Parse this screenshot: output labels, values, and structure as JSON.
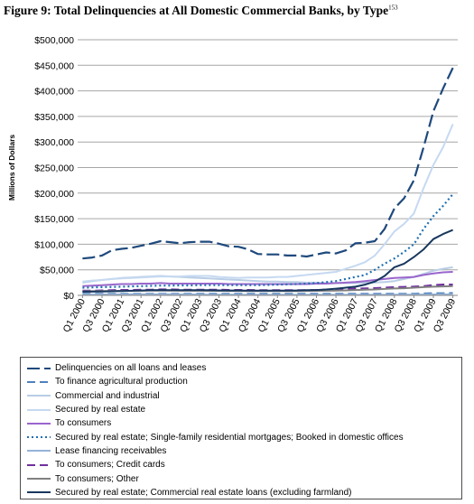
{
  "figure": {
    "title": "Figure 9: Total Delinquencies at All Domestic Commercial Banks, by Type",
    "footnote_marker": "153"
  },
  "chart_data": {
    "type": "line",
    "ylabel": "Millions of Dollars",
    "xlabel": "",
    "ylim": [
      0,
      500000
    ],
    "yticks": [
      0,
      50000,
      100000,
      150000,
      200000,
      250000,
      300000,
      350000,
      400000,
      450000,
      500000
    ],
    "ytick_labels": [
      "$0",
      "$50,000",
      "$100,000",
      "$150,000",
      "$200,000",
      "$250,000",
      "$300,000",
      "$350,000",
      "$400,000",
      "$450,000",
      "$500,000"
    ],
    "grid": true,
    "legend_position": "bottom",
    "x": [
      "Q1 2000",
      "Q2 2000",
      "Q3 2000",
      "Q4 2000",
      "Q1 2001",
      "Q2 2001",
      "Q3 2001",
      "Q4 2001",
      "Q1 2002",
      "Q2 2002",
      "Q3 2002",
      "Q4 2002",
      "Q1 2003",
      "Q2 2003",
      "Q3 2003",
      "Q4 2003",
      "Q1 2004",
      "Q2 2004",
      "Q3 2004",
      "Q4 2004",
      "Q1 2005",
      "Q2 2005",
      "Q3 2005",
      "Q4 2005",
      "Q1 2006",
      "Q2 2006",
      "Q3 2006",
      "Q4 2006",
      "Q1 2007",
      "Q2 2007",
      "Q3 2007",
      "Q4 2007",
      "Q1 2008",
      "Q2 2008",
      "Q3 2008",
      "Q4 2008",
      "Q1 2009",
      "Q2 2009",
      "Q3 2009"
    ],
    "x_tick_labels": [
      "Q1 2000",
      "Q3 2000",
      "Q1 2001",
      "Q3 2001",
      "Q1 2002",
      "Q3 2002",
      "Q1 2003",
      "Q3 2003",
      "Q1 2004",
      "Q3 2004",
      "Q1 2005",
      "Q3 2005",
      "Q1 2006",
      "Q3 2006",
      "Q1 2007",
      "Q3 2007",
      "Q1 2008",
      "Q3 2008",
      "Q1 2009",
      "Q3 2009"
    ],
    "series": [
      {
        "name": "Delinquencies on all loans and leases",
        "color": "#1f497d",
        "dash": "long",
        "values": [
          72000,
          74000,
          78000,
          88000,
          91000,
          93000,
          97000,
          101000,
          106000,
          104000,
          102000,
          104000,
          105000,
          105000,
          101000,
          96000,
          95000,
          90000,
          81000,
          80000,
          80000,
          78000,
          78000,
          76000,
          80000,
          84000,
          82000,
          88000,
          102000,
          103000,
          106000,
          130000,
          170000,
          190000,
          225000,
          290000,
          360000,
          405000,
          445000
        ]
      },
      {
        "name": "To finance agricultural production",
        "color": "#4f81bd",
        "dash": "dash",
        "values": [
          3000,
          3000,
          3000,
          3000,
          3000,
          3000,
          3000,
          3000,
          3000,
          3000,
          3000,
          3000,
          3000,
          3000,
          3000,
          3000,
          3000,
          3000,
          3000,
          3000,
          3000,
          3000,
          3000,
          3000,
          3000,
          3000,
          3000,
          3000,
          3000,
          3000,
          3000,
          3000,
          3000,
          3000,
          3000,
          3500,
          4000,
          4000,
          4500
        ]
      },
      {
        "name": "Commercial and industrial",
        "color": "#b9cde5",
        "dash": "solid",
        "values": [
          25000,
          28000,
          30000,
          32000,
          34000,
          35000,
          36000,
          37000,
          38000,
          37000,
          36000,
          35000,
          34000,
          33000,
          32000,
          31000,
          30000,
          29000,
          28000,
          27000,
          27000,
          26000,
          26000,
          25000,
          25000,
          24000,
          24000,
          24000,
          24000,
          25000,
          25000,
          26000,
          28000,
          32000,
          36000,
          42000,
          48000,
          52000,
          55000
        ]
      },
      {
        "name": "Secured by real estate",
        "color": "#c6d9f1",
        "dash": "solid",
        "values": [
          27000,
          29000,
          30000,
          32000,
          33000,
          34000,
          35000,
          36000,
          37000,
          37000,
          37000,
          38000,
          38000,
          38000,
          36000,
          35000,
          34000,
          35000,
          35000,
          35000,
          36000,
          36000,
          38000,
          40000,
          42000,
          44000,
          46000,
          52000,
          58000,
          65000,
          78000,
          100000,
          125000,
          140000,
          160000,
          210000,
          255000,
          290000,
          335000
        ]
      },
      {
        "name": "To consumers",
        "color": "#9966cc",
        "dash": "solid",
        "values": [
          18000,
          19000,
          20000,
          21000,
          22000,
          22000,
          23000,
          23000,
          24000,
          23000,
          23000,
          23000,
          23000,
          23000,
          23000,
          22000,
          22000,
          22000,
          22000,
          22000,
          22000,
          22000,
          22000,
          22000,
          23000,
          23000,
          24000,
          25000,
          26000,
          28000,
          30000,
          32000,
          34000,
          35000,
          36000,
          40000,
          43000,
          45000,
          46000
        ]
      },
      {
        "name": "Secured by real estate; Single-family residential mortgages; Booked in domestic offices",
        "color": "#1f6fb2",
        "dash": "dot",
        "values": [
          15000,
          15500,
          16000,
          16500,
          17000,
          17500,
          18000,
          18500,
          19000,
          19000,
          19500,
          19500,
          20000,
          20000,
          20000,
          20000,
          20000,
          20000,
          20000,
          20500,
          21000,
          21500,
          22000,
          23000,
          24000,
          26000,
          28000,
          32000,
          36000,
          40000,
          50000,
          62000,
          72000,
          85000,
          100000,
          130000,
          155000,
          175000,
          198000
        ]
      },
      {
        "name": "Lease financing receivables",
        "color": "#95b3d7",
        "dash": "solid",
        "values": [
          1500,
          1600,
          1700,
          1800,
          2000,
          2000,
          2000,
          2000,
          2000,
          1900,
          1800,
          1700,
          1600,
          1500,
          1400,
          1300,
          1200,
          1100,
          1000,
          1000,
          1000,
          1000,
          1000,
          1000,
          1000,
          1000,
          1000,
          1000,
          1000,
          1000,
          1000,
          1100,
          1200,
          1300,
          1400,
          1600,
          1800,
          1900,
          2000
        ]
      },
      {
        "name": "To consumers; Credit cards",
        "color": "#7030a0",
        "dash": "dash",
        "values": [
          9000,
          9000,
          9500,
          10000,
          10500,
          10500,
          11000,
          11000,
          11500,
          11500,
          11000,
          11000,
          11000,
          11000,
          11000,
          10500,
          10500,
          10500,
          10000,
          10000,
          10000,
          10000,
          10000,
          10000,
          10500,
          11000,
          11000,
          12000,
          13000,
          13500,
          14000,
          15000,
          16000,
          16500,
          17000,
          18000,
          20000,
          21000,
          21000
        ]
      },
      {
        "name": "To consumers; Other",
        "color": "#808080",
        "dash": "solid",
        "values": [
          8000,
          8200,
          8400,
          8600,
          8800,
          8900,
          9000,
          9100,
          9200,
          9100,
          9000,
          9000,
          9000,
          8900,
          8800,
          8700,
          8600,
          8500,
          8500,
          8500,
          8500,
          8500,
          8500,
          8600,
          8800,
          9000,
          9300,
          9800,
          10500,
          11000,
          11500,
          12500,
          13500,
          14000,
          15000,
          16000,
          17000,
          17500,
          18000
        ]
      },
      {
        "name": "Secured by real estate; Commercial real estate loans (excluding farmland)",
        "color": "#17375e",
        "dash": "solid",
        "values": [
          7000,
          7300,
          7600,
          8000,
          8500,
          9000,
          9500,
          10000,
          10500,
          10200,
          10000,
          10000,
          10000,
          10000,
          9800,
          9600,
          9500,
          9400,
          9300,
          9200,
          9200,
          9300,
          9500,
          10000,
          10500,
          11500,
          13000,
          15000,
          17000,
          21000,
          27000,
          38000,
          55000,
          62000,
          75000,
          90000,
          110000,
          120000,
          128000
        ]
      }
    ]
  }
}
